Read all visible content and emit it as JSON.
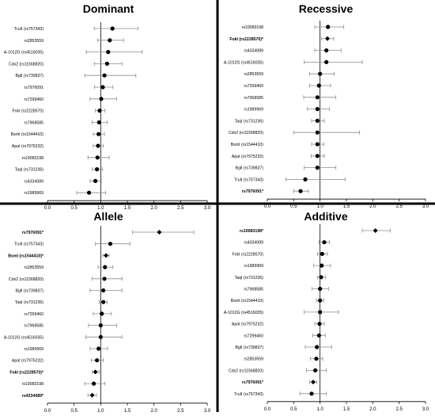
{
  "chart_data": [
    {
      "type": "scatter",
      "subtype": "forest-plot",
      "title": "Dominant",
      "xlim": [
        0,
        3
      ],
      "x_ticks": [
        "0.0",
        "0.5",
        "1.0",
        "1.5",
        "2.0",
        "2.5",
        "3.0"
      ],
      "reference_line": 1,
      "rows": [
        {
          "label": "TruII (rs757343)",
          "or": 1.22,
          "lo": 0.88,
          "hi": 1.7,
          "bold": false,
          "marker": "circle"
        },
        {
          "label": "rs2853559",
          "or": 1.17,
          "lo": 0.94,
          "hi": 1.43,
          "bold": false,
          "marker": "circle"
        },
        {
          "label": "A-1012G (rs4516035)",
          "or": 1.14,
          "lo": 0.73,
          "hi": 1.78,
          "bold": false,
          "marker": "circle"
        },
        {
          "label": "Cdx2 (rs11568820)",
          "or": 1.12,
          "lo": 0.88,
          "hi": 1.4,
          "bold": false,
          "marker": "circle"
        },
        {
          "label": "BglI (rs739837)",
          "or": 1.07,
          "lo": 0.7,
          "hi": 1.66,
          "bold": false,
          "marker": "circle"
        },
        {
          "label": "rs7976091",
          "or": 1.04,
          "lo": 0.88,
          "hi": 1.23,
          "bold": false,
          "marker": "circle"
        },
        {
          "label": "rs7299460",
          "or": 1.01,
          "lo": 0.8,
          "hi": 1.3,
          "bold": false,
          "marker": "circle"
        },
        {
          "label": "FokI (rs2228570)",
          "or": 0.98,
          "lo": 0.9,
          "hi": 1.08,
          "bold": false,
          "marker": "circle"
        },
        {
          "label": "rs7968585",
          "or": 0.97,
          "lo": 0.84,
          "hi": 1.12,
          "bold": false,
          "marker": "circle"
        },
        {
          "label": "BsmI (rs1544410)",
          "or": 0.96,
          "lo": 0.86,
          "hi": 1.07,
          "bold": false,
          "marker": "circle"
        },
        {
          "label": "ApaI (rs7975232)",
          "or": 0.95,
          "lo": 0.86,
          "hi": 1.05,
          "bold": false,
          "marker": "circle"
        },
        {
          "label": "rs10083198",
          "or": 0.94,
          "lo": 0.76,
          "hi": 1.16,
          "bold": false,
          "marker": "circle"
        },
        {
          "label": "TaqI (rs731236)",
          "or": 0.93,
          "lo": 0.84,
          "hi": 1.03,
          "bold": false,
          "marker": "circle"
        },
        {
          "label": "rs4334089",
          "or": 0.9,
          "lo": 0.8,
          "hi": 1.01,
          "bold": false,
          "marker": "circle"
        },
        {
          "label": "rs1989969",
          "or": 0.78,
          "lo": 0.55,
          "hi": 1.09,
          "bold": false,
          "marker": "circle"
        }
      ]
    },
    {
      "type": "scatter",
      "subtype": "forest-plot",
      "title": "Recessive",
      "xlim": [
        0,
        3
      ],
      "x_ticks": [
        "0.0",
        "0.5",
        "1.0",
        "1.5",
        "2.0",
        "2.5",
        "3.0"
      ],
      "reference_line": 1,
      "rows": [
        {
          "label": "rs10083198",
          "or": 1.15,
          "lo": 0.9,
          "hi": 1.45,
          "bold": false,
          "marker": "circle"
        },
        {
          "label": "FokI (rs2228570)*",
          "or": 1.14,
          "lo": 1.03,
          "hi": 1.26,
          "bold": true,
          "marker": "diamond"
        },
        {
          "label": "rs4334089",
          "or": 1.12,
          "lo": 0.9,
          "hi": 1.4,
          "bold": false,
          "marker": "circle"
        },
        {
          "label": "A-1012G (rs4516035)",
          "or": 1.12,
          "lo": 0.7,
          "hi": 1.8,
          "bold": false,
          "marker": "circle"
        },
        {
          "label": "rs2853559",
          "or": 1.0,
          "lo": 0.8,
          "hi": 1.27,
          "bold": false,
          "marker": "circle"
        },
        {
          "label": "rs7299460",
          "or": 0.98,
          "lo": 0.8,
          "hi": 1.2,
          "bold": false,
          "marker": "circle"
        },
        {
          "label": "rs7968585",
          "or": 0.95,
          "lo": 0.69,
          "hi": 1.3,
          "bold": false,
          "marker": "circle"
        },
        {
          "label": "rs1989969",
          "or": 0.95,
          "lo": 0.76,
          "hi": 1.18,
          "bold": false,
          "marker": "circle"
        },
        {
          "label": "TaqI (rs731236)",
          "or": 0.95,
          "lo": 0.84,
          "hi": 1.08,
          "bold": false,
          "marker": "circle"
        },
        {
          "label": "Cdx2 (rs11568820)",
          "or": 0.95,
          "lo": 0.5,
          "hi": 1.75,
          "bold": false,
          "marker": "circle"
        },
        {
          "label": "BsmI (rs1544410)",
          "or": 0.95,
          "lo": 0.84,
          "hi": 1.07,
          "bold": false,
          "marker": "circle"
        },
        {
          "label": "ApaI (rs7975232)",
          "or": 0.95,
          "lo": 0.83,
          "hi": 1.08,
          "bold": false,
          "marker": "circle"
        },
        {
          "label": "BglI (rs739837)",
          "or": 0.95,
          "lo": 0.7,
          "hi": 1.3,
          "bold": false,
          "marker": "circle"
        },
        {
          "label": "TruII (rs757343)",
          "or": 0.72,
          "lo": 0.35,
          "hi": 1.48,
          "bold": false,
          "marker": "circle"
        },
        {
          "label": "rs7976091*",
          "or": 0.63,
          "lo": 0.5,
          "hi": 0.78,
          "bold": true,
          "marker": "circle"
        }
      ]
    },
    {
      "type": "scatter",
      "subtype": "forest-plot",
      "title": "Allele",
      "xlim": [
        0,
        3
      ],
      "x_ticks": [
        "0.0",
        "0.5",
        "1.0",
        "1.5",
        "2.0",
        "2.5",
        "3.0"
      ],
      "reference_line": 1,
      "rows": [
        {
          "label": "rs7976091*",
          "or": 2.1,
          "lo": 1.6,
          "hi": 2.75,
          "bold": true,
          "marker": "diamond"
        },
        {
          "label": "TruII (rs757343)",
          "or": 1.18,
          "lo": 0.9,
          "hi": 1.55,
          "bold": false,
          "marker": "circle"
        },
        {
          "label": "BsmI (rs1544410)*",
          "or": 1.1,
          "lo": 1.04,
          "hi": 1.16,
          "bold": true,
          "marker": "diamond"
        },
        {
          "label": "rs2853559",
          "or": 1.08,
          "lo": 0.95,
          "hi": 1.23,
          "bold": false,
          "marker": "circle"
        },
        {
          "label": "Cdx2 (rs11568820)",
          "or": 1.07,
          "lo": 0.84,
          "hi": 1.4,
          "bold": false,
          "marker": "circle"
        },
        {
          "label": "BglI (rs739837)",
          "or": 1.05,
          "lo": 0.8,
          "hi": 1.4,
          "bold": false,
          "marker": "circle"
        },
        {
          "label": "TaqI (rs731236)",
          "or": 1.05,
          "lo": 0.97,
          "hi": 1.12,
          "bold": false,
          "marker": "circle"
        },
        {
          "label": "rs7299460",
          "or": 1.02,
          "lo": 0.86,
          "hi": 1.2,
          "bold": false,
          "marker": "circle"
        },
        {
          "label": "rs7968585",
          "or": 1.0,
          "lo": 0.77,
          "hi": 1.3,
          "bold": false,
          "marker": "circle"
        },
        {
          "label": "A-1012G (rs4516035)",
          "or": 1.0,
          "lo": 0.72,
          "hi": 1.4,
          "bold": false,
          "marker": "circle"
        },
        {
          "label": "rs1989969",
          "or": 0.96,
          "lo": 0.8,
          "hi": 1.13,
          "bold": false,
          "marker": "circle"
        },
        {
          "label": "ApaI (rs7975232)",
          "or": 0.93,
          "lo": 0.82,
          "hi": 1.05,
          "bold": false,
          "marker": "circle"
        },
        {
          "label": "FokI (rs2228570)*",
          "or": 0.9,
          "lo": 0.84,
          "hi": 0.97,
          "bold": true,
          "marker": "diamond"
        },
        {
          "label": "rs10083198",
          "or": 0.87,
          "lo": 0.7,
          "hi": 1.08,
          "bold": false,
          "marker": "circle"
        },
        {
          "label": "rs4334089*",
          "or": 0.84,
          "lo": 0.76,
          "hi": 0.92,
          "bold": true,
          "marker": "diamond"
        }
      ]
    },
    {
      "type": "scatter",
      "subtype": "forest-plot",
      "title": "Additive",
      "xlim": [
        0,
        3
      ],
      "x_ticks": [
        "0.0",
        "0.5",
        "1.0",
        "1.5",
        "2.0",
        "2.5",
        "3.0"
      ],
      "reference_line": 1,
      "rows": [
        {
          "label": "rs10083198*",
          "or": 2.05,
          "lo": 1.8,
          "hi": 2.33,
          "bold": true,
          "marker": "diamond"
        },
        {
          "label": "rs4334089",
          "or": 1.08,
          "lo": 0.98,
          "hi": 1.18,
          "bold": false,
          "marker": "circle"
        },
        {
          "label": "FokI (rs2228570)",
          "or": 1.04,
          "lo": 0.95,
          "hi": 1.14,
          "bold": false,
          "marker": "circle"
        },
        {
          "label": "rs1989969",
          "or": 1.03,
          "lo": 0.88,
          "hi": 1.2,
          "bold": false,
          "marker": "circle"
        },
        {
          "label": "TaqI (rs731236)",
          "or": 1.02,
          "lo": 0.95,
          "hi": 1.1,
          "bold": false,
          "marker": "circle"
        },
        {
          "label": "rs7968585",
          "or": 1.0,
          "lo": 0.85,
          "hi": 1.16,
          "bold": false,
          "marker": "circle"
        },
        {
          "label": "BsmI (rs1544410)",
          "or": 1.0,
          "lo": 0.93,
          "hi": 1.07,
          "bold": false,
          "marker": "circle"
        },
        {
          "label": "A-1012G (rs4516035)",
          "or": 1.0,
          "lo": 0.7,
          "hi": 1.35,
          "bold": false,
          "marker": "circle"
        },
        {
          "label": "ApaI (rs7975232)",
          "or": 0.99,
          "lo": 0.9,
          "hi": 1.08,
          "bold": false,
          "marker": "circle"
        },
        {
          "label": "rs7299460",
          "or": 0.98,
          "lo": 0.86,
          "hi": 1.1,
          "bold": false,
          "marker": "circle"
        },
        {
          "label": "BglI (rs739837)",
          "or": 0.94,
          "lo": 0.72,
          "hi": 1.22,
          "bold": false,
          "marker": "circle"
        },
        {
          "label": "rs2853559",
          "or": 0.93,
          "lo": 0.82,
          "hi": 1.05,
          "bold": false,
          "marker": "circle"
        },
        {
          "label": "Cdx2 (rs11568820)",
          "or": 0.91,
          "lo": 0.74,
          "hi": 1.12,
          "bold": false,
          "marker": "circle"
        },
        {
          "label": "rs7976091*",
          "or": 0.87,
          "lo": 0.8,
          "hi": 0.94,
          "bold": true,
          "marker": "diamond"
        },
        {
          "label": "TruII (rs757343)",
          "or": 0.84,
          "lo": 0.62,
          "hi": 1.12,
          "bold": false,
          "marker": "circle"
        }
      ]
    }
  ],
  "colors": {
    "point": "#000000",
    "whisker": "#8c8c8c",
    "reference_line": "#000000",
    "divider": "#000000",
    "text": "#000000"
  }
}
